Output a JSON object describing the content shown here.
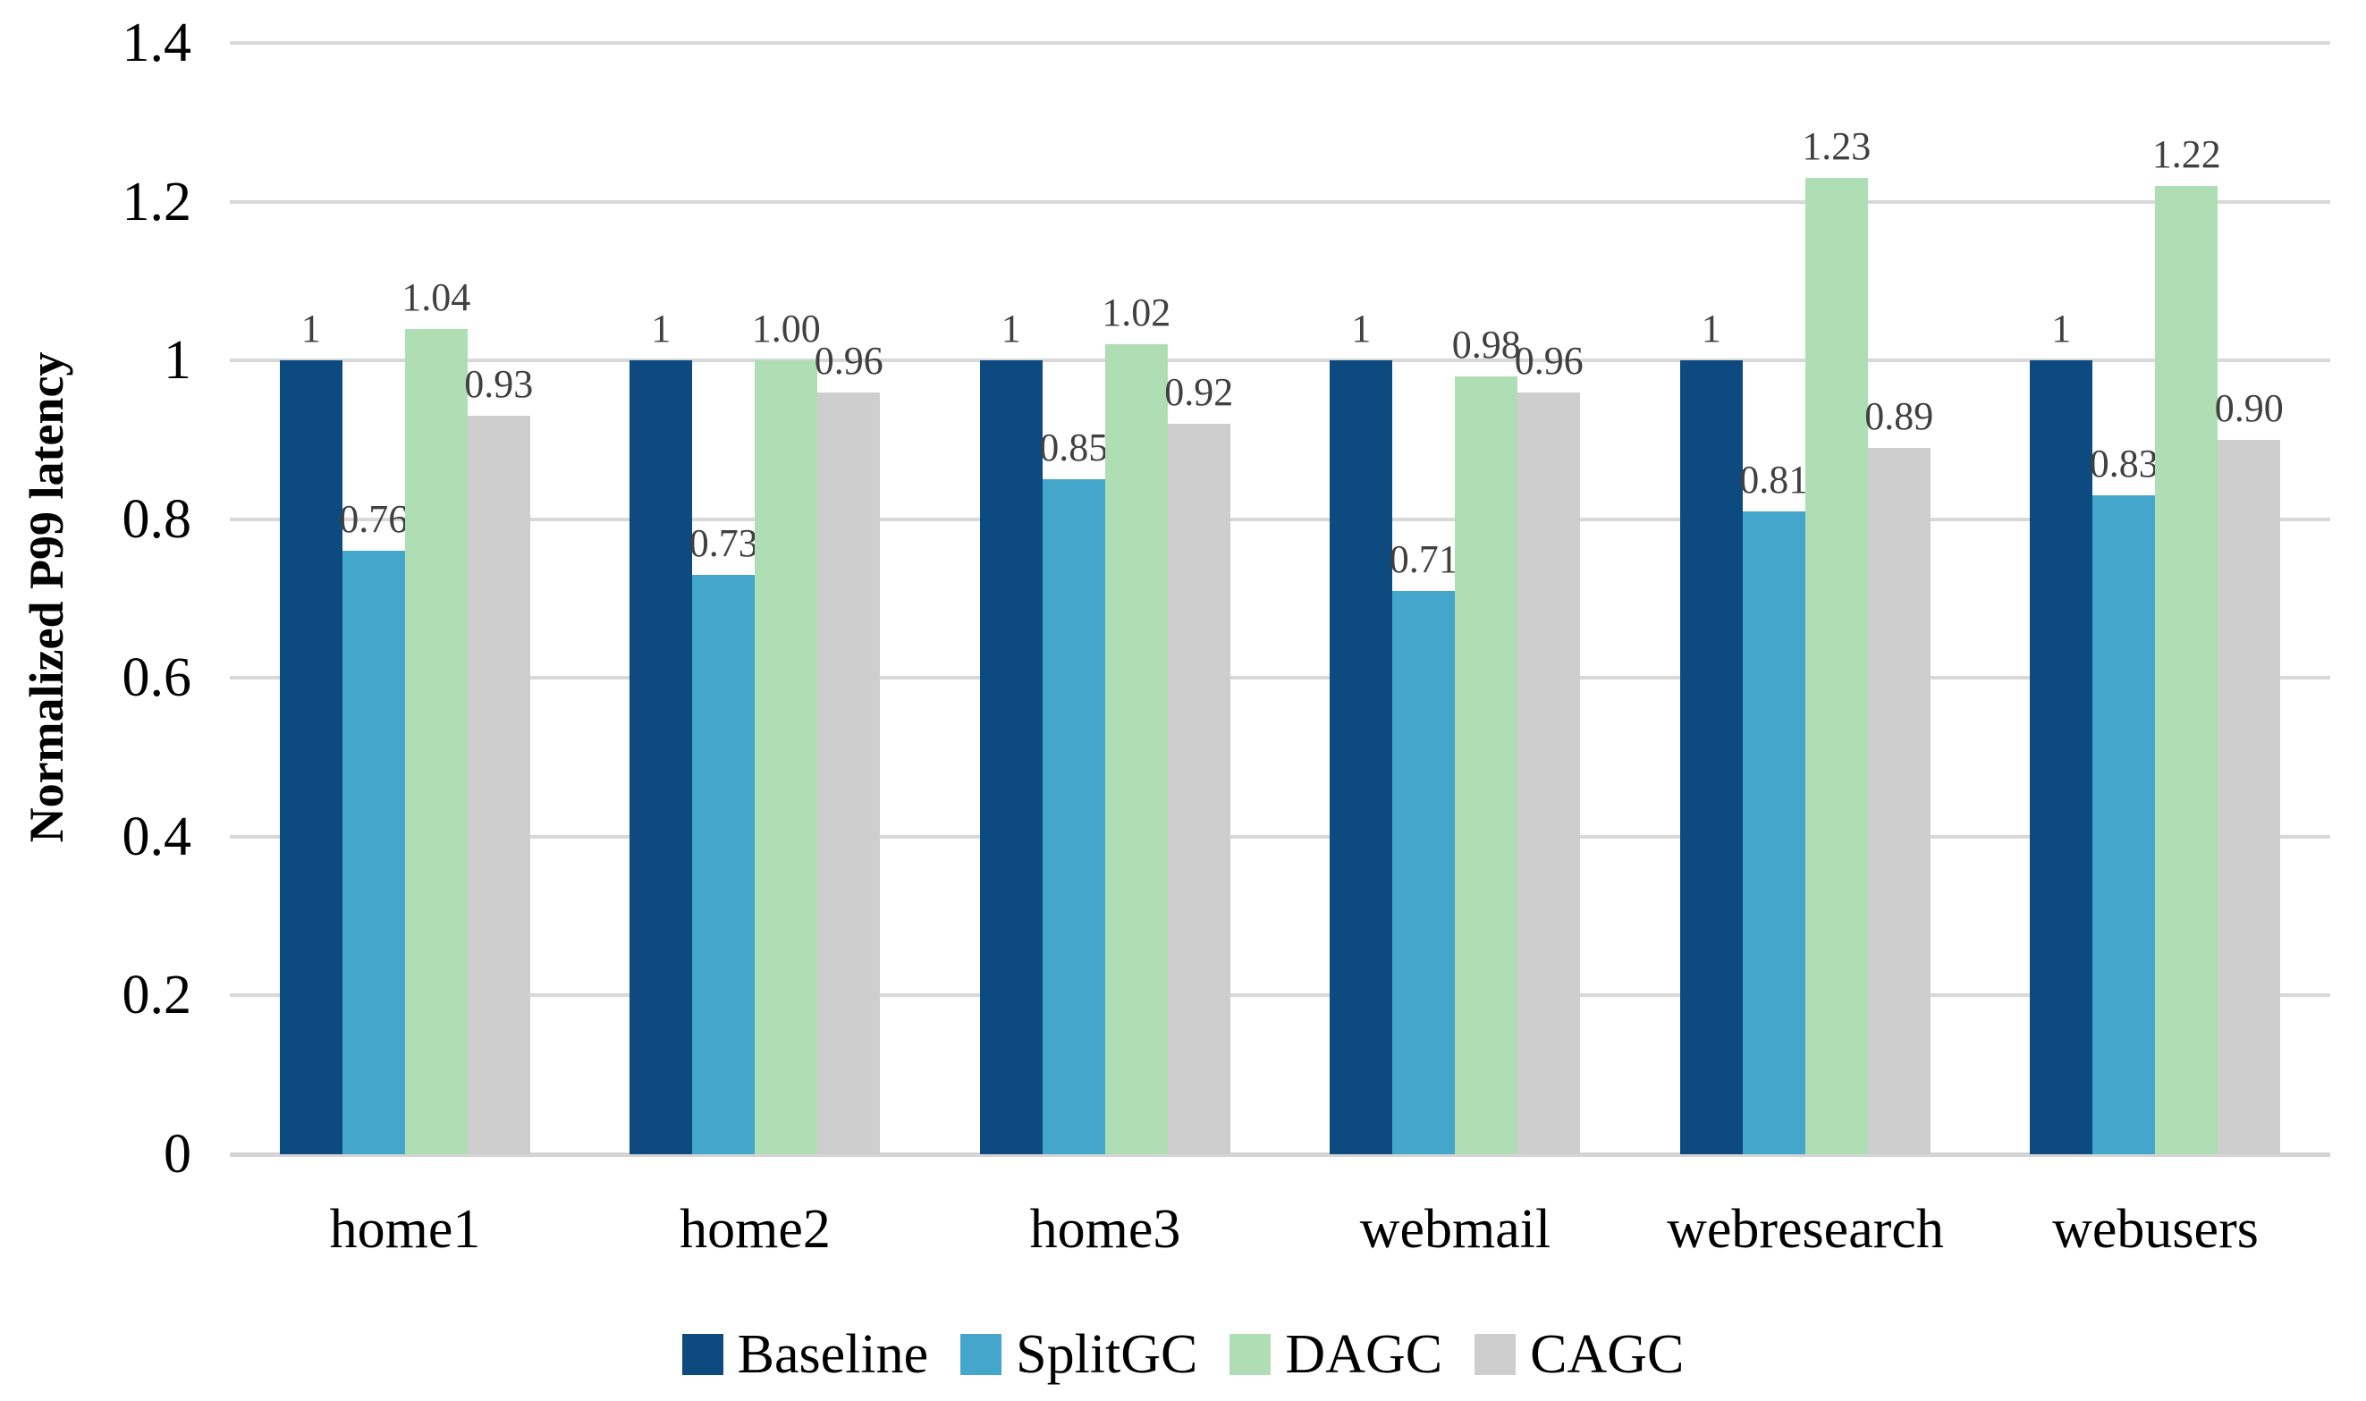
{
  "chart_data": {
    "type": "bar",
    "title": "",
    "xlabel": "",
    "ylabel": "Normalized P99 latency",
    "ylim": [
      0,
      1.4
    ],
    "grid": true,
    "legend_position": "bottom",
    "yticks": {
      "values": [
        0,
        0.2,
        0.4,
        0.6,
        0.8,
        1,
        1.2,
        1.4
      ],
      "labels": [
        "0",
        "0.2",
        "0.4",
        "0.6",
        "0.8",
        "1",
        "1.2",
        "1.4"
      ]
    },
    "categories": [
      "home1",
      "home2",
      "home3",
      "webmail",
      "webresearch",
      "webusers"
    ],
    "series": [
      {
        "name": "Baseline",
        "color_key": "baseline",
        "values": [
          1,
          1,
          1,
          1,
          1,
          1
        ],
        "labels": [
          "1",
          "1",
          "1",
          "1",
          "1",
          "1"
        ]
      },
      {
        "name": "SplitGC",
        "color_key": "splitgc",
        "values": [
          0.76,
          0.73,
          0.85,
          0.71,
          0.81,
          0.83
        ],
        "labels": [
          "0.76",
          "0.73",
          "0.85",
          "0.71",
          "0.81",
          "0.83"
        ]
      },
      {
        "name": "DAGC",
        "color_key": "dagc",
        "values": [
          1.04,
          1.0,
          1.02,
          0.98,
          1.23,
          1.22
        ],
        "labels": [
          "1.04",
          "1.00",
          "1.02",
          "0.98",
          "1.23",
          "1.22"
        ]
      },
      {
        "name": "CAGC",
        "color_key": "cagc",
        "values": [
          0.93,
          0.96,
          0.92,
          0.96,
          0.89,
          0.9
        ],
        "labels": [
          "0.93",
          "0.96",
          "0.92",
          "0.96",
          "0.89",
          "0.90"
        ]
      }
    ]
  },
  "colors": {
    "baseline": "#0C4A80",
    "splitgc": "#45A6CB",
    "dagc": "#B0DEB4",
    "cagc": "#CFCECE",
    "gridline": "#D8D8D8",
    "axis_line": "#D4D4D4",
    "axis_text": "#000000",
    "value_label": "#404040",
    "background": "#FFFFFF"
  }
}
